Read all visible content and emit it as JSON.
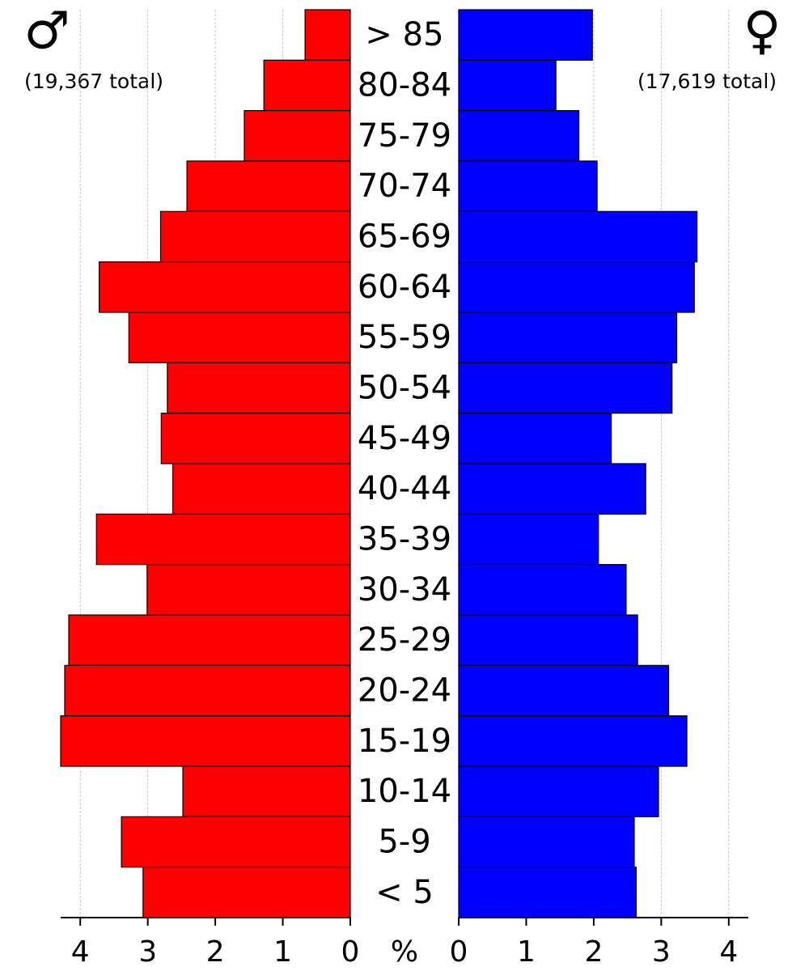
{
  "chart_data": {
    "type": "population_pyramid",
    "categories": [
      "> 85",
      "80-84",
      "75-79",
      "70-74",
      "65-69",
      "60-64",
      "55-59",
      "50-54",
      "45-49",
      "40-44",
      "35-39",
      "30-34",
      "25-29",
      "20-24",
      "15-19",
      "10-14",
      "5-9",
      "< 5"
    ],
    "series": [
      {
        "color": "#ff0000",
        "symbol": "♂",
        "note": "(19,367 total)",
        "values": [
          0.67,
          1.28,
          1.57,
          2.42,
          2.81,
          3.72,
          3.28,
          2.71,
          2.8,
          2.63,
          3.76,
          3.01,
          4.17,
          4.23,
          4.29,
          2.48,
          3.39,
          3.07
        ]
      },
      {
        "color": "#0000ff",
        "symbol": "♀",
        "note": "(17,619 total)",
        "values": [
          1.98,
          1.44,
          1.78,
          2.05,
          3.53,
          3.49,
          3.23,
          3.16,
          2.26,
          2.77,
          2.07,
          2.48,
          2.65,
          3.11,
          3.38,
          2.96,
          2.6,
          2.63
        ]
      }
    ],
    "xlabel": "%",
    "xlim": [
      0,
      4.29
    ],
    "xticks": [
      0,
      1,
      2,
      3,
      4
    ],
    "grid": true
  }
}
